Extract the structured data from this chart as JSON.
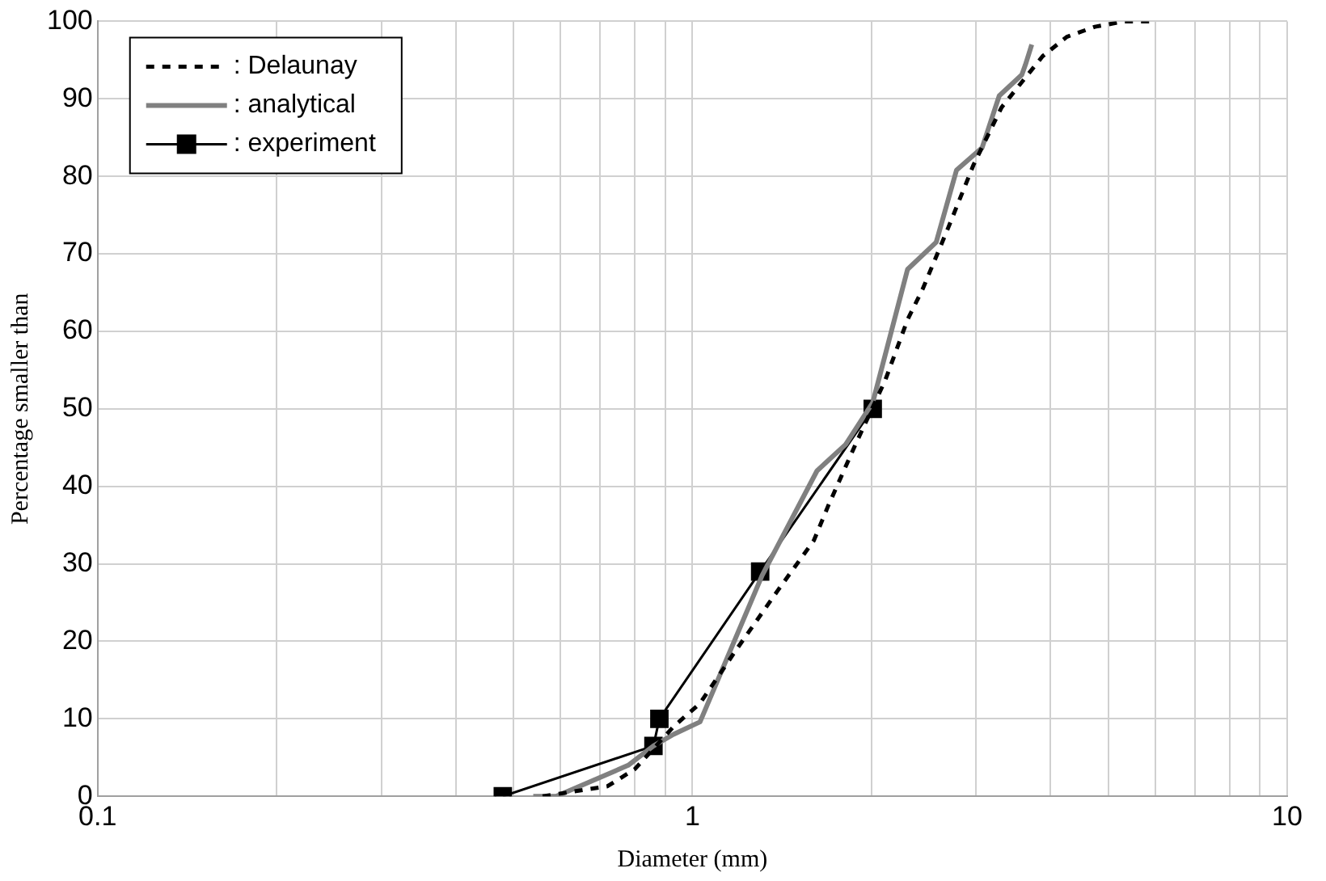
{
  "chart_data": {
    "type": "line",
    "xlabel": "Diameter (mm)",
    "ylabel": "Percentage smaller than",
    "log": "x",
    "xlim": [
      0.1,
      10
    ],
    "ylim": [
      0,
      100
    ],
    "xticks": [
      0.1,
      {
        "value": 0.2,
        "label": null
      },
      {
        "value": 0.3,
        "label": null
      },
      {
        "value": 0.4,
        "label": null
      },
      {
        "value": 0.5,
        "label": null
      },
      {
        "value": 0.6,
        "label": null
      },
      {
        "value": 0.7,
        "label": null
      },
      {
        "value": 0.8,
        "label": null
      },
      {
        "value": 0.9,
        "label": null
      },
      1,
      {
        "value": 2,
        "label": null
      },
      {
        "value": 3,
        "label": null
      },
      {
        "value": 4,
        "label": null
      },
      {
        "value": 5,
        "label": null
      },
      {
        "value": 6,
        "label": null
      },
      {
        "value": 7,
        "label": null
      },
      {
        "value": 8,
        "label": null
      },
      {
        "value": 9,
        "label": null
      },
      10
    ],
    "yticks": [
      0,
      10,
      20,
      30,
      40,
      50,
      60,
      70,
      80,
      90,
      100
    ],
    "grid": true,
    "legend": "top left",
    "series": [
      {
        "name": ": Delaunay",
        "color": "#000000",
        "line_style": "dashed",
        "marker": "none",
        "x": [
          0.56,
          0.72,
          0.8,
          0.93,
          1.03,
          1.18,
          1.39,
          1.6,
          1.69,
          1.88,
          2.11,
          2.3,
          2.44,
          2.69,
          2.97,
          3.31,
          3.88,
          4.26,
          4.75,
          5.33,
          6.0
        ],
        "values": [
          0,
          1.3,
          3.5,
          9,
          12,
          18.7,
          26.5,
          33,
          37.4,
          45.4,
          53.7,
          61.5,
          65.5,
          73.3,
          81.5,
          88.9,
          95.5,
          98,
          99.3,
          100,
          100
        ]
      },
      {
        "name": ": analytical",
        "color": "#808080",
        "line_style": "solid",
        "marker": "none",
        "x": [
          0.54,
          0.59,
          0.78,
          0.86,
          0.93,
          1.03,
          1.31,
          1.62,
          1.81,
          2.01,
          2.3,
          2.57,
          2.78,
          3.07,
          3.28,
          3.58,
          3.63,
          3.72
        ],
        "values": [
          0,
          0,
          4,
          6.5,
          8,
          9.6,
          28.5,
          42,
          45.4,
          50.8,
          68,
          71.5,
          80.8,
          83.7,
          90.4,
          93.1,
          94.4,
          97
        ]
      },
      {
        "name": ": experiment",
        "color": "#000000",
        "line_style": "solid",
        "marker": "square",
        "x": [
          0.48,
          0.86,
          0.88,
          1.3,
          2.01
        ],
        "values": [
          0,
          6.5,
          10,
          29,
          50
        ]
      }
    ]
  }
}
